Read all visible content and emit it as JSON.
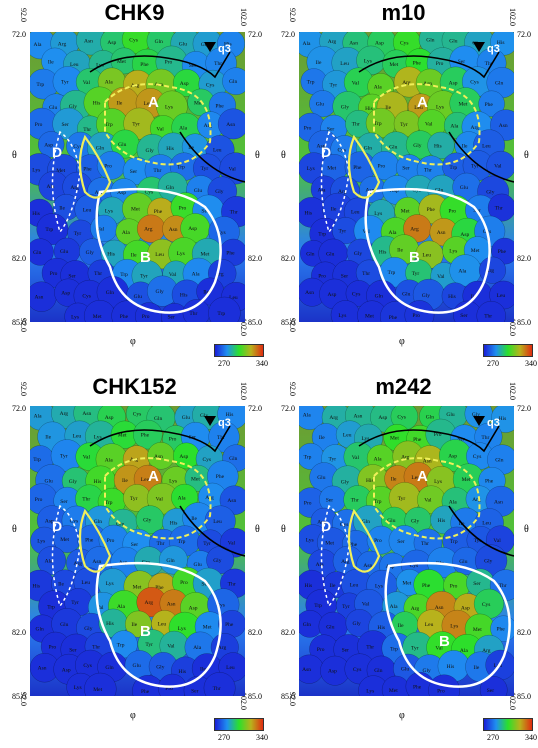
{
  "panels": [
    {
      "title": "CHK9"
    },
    {
      "title": "m10"
    },
    {
      "title": "CHK152"
    },
    {
      "title": "m242"
    }
  ],
  "axes": {
    "theta_label": "θ",
    "phi_label": "φ",
    "theta_top": "72.0",
    "theta_mid": "82.0",
    "theta_bottom": "85.0",
    "phi_left": "92.0",
    "phi_right": "102.0"
  },
  "colorbar": {
    "min": "270",
    "max": "340",
    "colors": [
      "#1a1fd6",
      "#1f8ff0",
      "#2be02b",
      "#b8b21c",
      "#e02c10"
    ]
  },
  "regions": {
    "a": "A",
    "b": "B",
    "d": "D",
    "q3": "q3"
  },
  "residues": [
    "Ala",
    "Arg",
    "Asn",
    "Asp",
    "Cys",
    "Gln",
    "Glu",
    "Gly",
    "His",
    "Ile",
    "Leu",
    "Lys",
    "Met",
    "Phe",
    "Pro",
    "Ser",
    "Thr",
    "Trp",
    "Tyr",
    "Val"
  ]
}
